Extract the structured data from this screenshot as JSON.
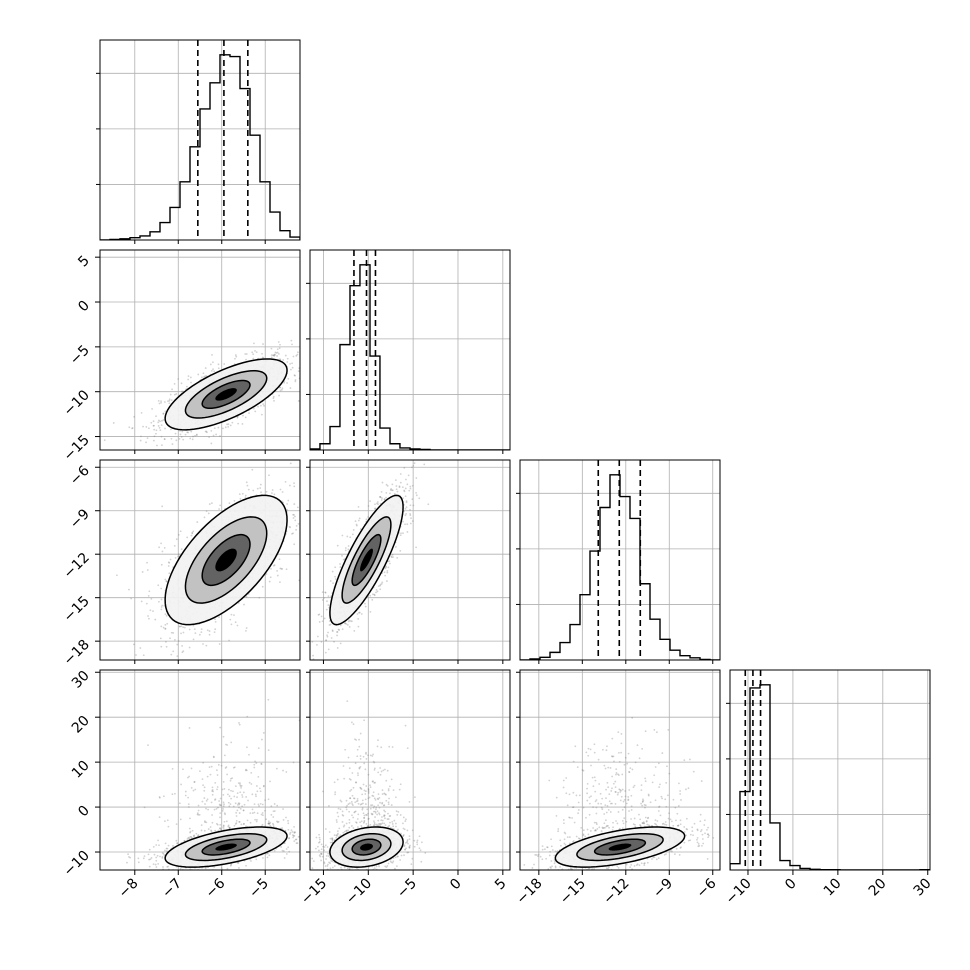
{
  "chart_data": {
    "type": "corner",
    "n_params": 4,
    "axis_labels": [
      "",
      "",
      "",
      ""
    ],
    "ranges": [
      [
        -8.8,
        -4.2
      ],
      [
        -16.5,
        5.8
      ],
      [
        -19.3,
        -5.5
      ],
      [
        -14,
        30.5
      ]
    ],
    "ticks": [
      [
        -8,
        -7,
        -6,
        -5
      ],
      [
        -15,
        -10,
        -5,
        0,
        5
      ],
      [
        -18,
        -15,
        -12,
        -9,
        -6
      ],
      [
        -10,
        0,
        10,
        20,
        30
      ]
    ],
    "tick_labels": [
      [
        "−8",
        "−7",
        "−6",
        "−5"
      ],
      [
        "−15",
        "−10",
        "−5",
        "0",
        "5"
      ],
      [
        "−18",
        "−15",
        "−12",
        "−9",
        "−6"
      ],
      [
        "−10",
        "0",
        "10",
        "20",
        "30"
      ]
    ],
    "quantiles": [
      [
        -6.55,
        -5.95,
        -5.4
      ],
      [
        -11.6,
        -10.2,
        -9.2
      ],
      [
        -13.9,
        -12.45,
        -11.0
      ],
      [
        -10.6,
        -8.9,
        -7.2
      ]
    ],
    "histograms": [
      {
        "bin_edges": [
          -8.8,
          -8.57,
          -8.34,
          -8.11,
          -7.88,
          -7.65,
          -7.42,
          -7.19,
          -6.96,
          -6.73,
          -6.5,
          -6.27,
          -6.04,
          -5.81,
          -5.58,
          -5.35,
          -5.12,
          -4.89,
          -4.66,
          -4.43,
          -4.2
        ],
        "counts": [
          0,
          1,
          2,
          4,
          7,
          14,
          30,
          56,
          100,
          160,
          225,
          270,
          318,
          315,
          260,
          180,
          100,
          48,
          16,
          5
        ]
      },
      {
        "bin_edges": [
          -16.5,
          -15.39,
          -14.27,
          -13.16,
          -12.04,
          -10.93,
          -9.81,
          -8.7,
          -7.58,
          -6.47,
          -5.35,
          -4.24,
          -3.12,
          -2.01,
          -0.89,
          0.22,
          1.34,
          2.45,
          3.57,
          4.68,
          5.8
        ],
        "counts": [
          2,
          12,
          45,
          202,
          315,
          355,
          180,
          42,
          12,
          4,
          2,
          1,
          0,
          0,
          0,
          0,
          0,
          0,
          0,
          0
        ]
      },
      {
        "bin_edges": [
          -19.3,
          -18.61,
          -17.92,
          -17.23,
          -16.54,
          -15.85,
          -15.16,
          -14.47,
          -13.78,
          -13.09,
          -12.4,
          -11.71,
          -11.02,
          -10.33,
          -9.64,
          -8.95,
          -8.26,
          -7.57,
          -6.88,
          -6.19,
          -5.5
        ],
        "counts": [
          0,
          2,
          5,
          14,
          32,
          65,
          120,
          200,
          280,
          340,
          300,
          260,
          140,
          75,
          38,
          18,
          8,
          4,
          1,
          0
        ]
      },
      {
        "bin_edges": [
          -14.0,
          -11.78,
          -9.55,
          -7.33,
          -5.1,
          -2.88,
          -0.65,
          1.58,
          3.8,
          6.03,
          8.25,
          10.48,
          12.7,
          14.93,
          17.15,
          19.38,
          21.6,
          23.83,
          26.05,
          28.28,
          30.5
        ],
        "counts": [
          20,
          250,
          580,
          590,
          150,
          30,
          14,
          5,
          2,
          1,
          1,
          0,
          0,
          0,
          0,
          0,
          0,
          0,
          0,
          1
        ]
      }
    ],
    "pairs": [
      {
        "x": 0,
        "y": 1,
        "center": [
          -5.9,
          -10.3
        ],
        "sd": [
          0.55,
          1.55
        ],
        "corr": 0.68,
        "contour_scale": [
          1.0,
          1.7,
          2.55
        ],
        "outliers_up": 0
      },
      {
        "x": 0,
        "y": 2,
        "center": [
          -5.9,
          -12.4
        ],
        "sd": [
          0.55,
          1.75
        ],
        "corr": 0.62,
        "contour_scale": [
          1.0,
          1.7,
          2.55
        ],
        "outliers_up": 0
      },
      {
        "x": 1,
        "y": 2,
        "center": [
          -10.2,
          -12.4
        ],
        "sd": [
          1.6,
          1.75
        ],
        "corr": 0.82,
        "contour_scale": [
          1.0,
          1.7,
          2.55
        ],
        "outliers_up": 0
      },
      {
        "x": 0,
        "y": 3,
        "center": [
          -5.9,
          -8.9
        ],
        "sd": [
          0.55,
          1.75
        ],
        "corr": 0.55,
        "contour_scale": [
          1.0,
          1.7,
          2.55
        ],
        "outliers_up": 1
      },
      {
        "x": 1,
        "y": 3,
        "center": [
          -10.2,
          -8.9
        ],
        "sd": [
          1.6,
          1.75
        ],
        "corr": 0.25,
        "contour_scale": [
          1.0,
          1.7,
          2.55
        ],
        "outliers_up": 1
      },
      {
        "x": 2,
        "y": 3,
        "center": [
          -12.4,
          -8.9
        ],
        "sd": [
          1.75,
          1.75
        ],
        "corr": 0.55,
        "contour_scale": [
          1.0,
          1.7,
          2.55
        ],
        "outliers_up": 1
      }
    ],
    "grid": true,
    "colors": {
      "axis": "#000000",
      "grid": "#b0b0b0",
      "points": "#7f7f7f",
      "fill_outer": "#f2f2f2",
      "fill_mid": "#bdbdbd",
      "fill_inner": "#595959",
      "line": "#000000"
    }
  }
}
